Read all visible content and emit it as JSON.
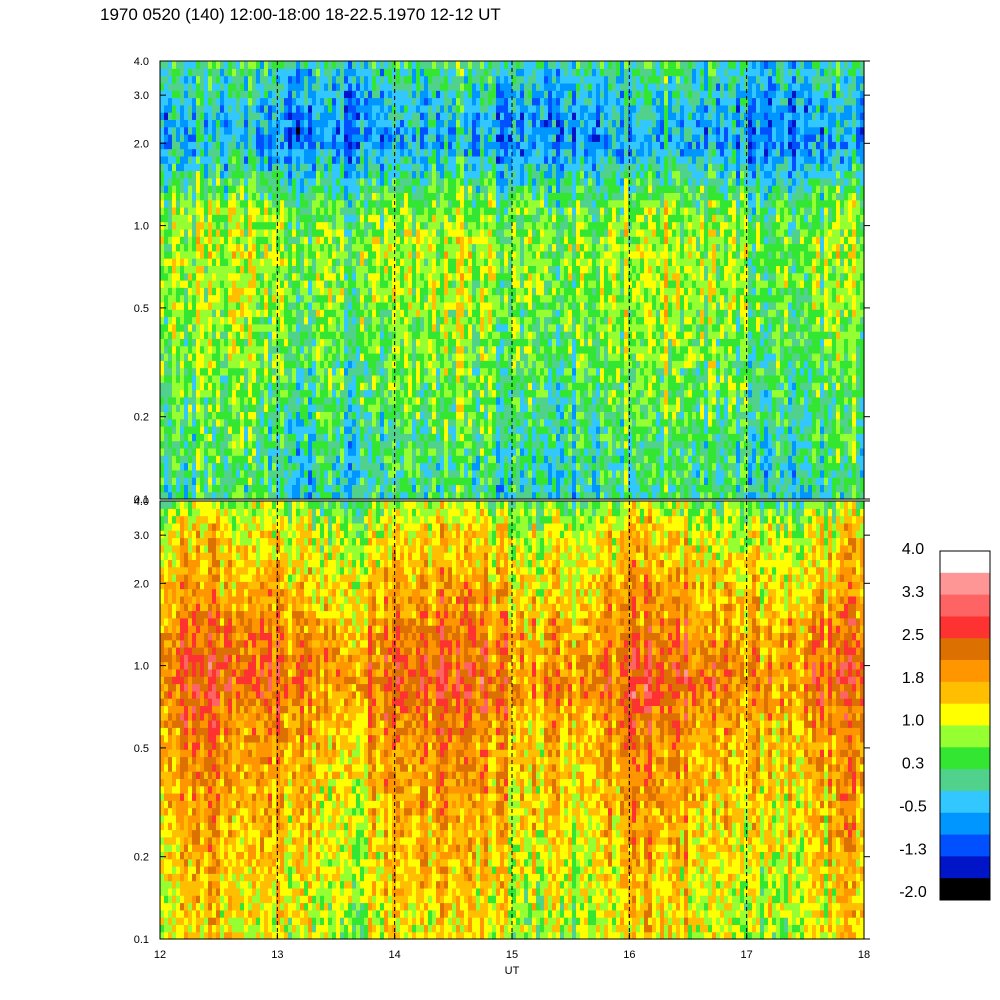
{
  "title": "1970 0520 (140) 12:00-18:00 18-22.5.1970  12-12 UT",
  "chart_data": [
    {
      "type": "heatmap",
      "panel": "upper",
      "x": [
        12,
        18
      ],
      "ylim": [
        0.1,
        4.0
      ],
      "y_scale": "log",
      "y_ticks": [
        "4.0",
        "3.0",
        "2.0",
        "1.0",
        "0.5",
        "0.2",
        "0.1"
      ],
      "y_tick_values": [
        4.0,
        3.0,
        2.0,
        1.0,
        0.5,
        0.2,
        0.1
      ],
      "x_markers": [
        13,
        14,
        15,
        16,
        17
      ],
      "profile": [
        {
          "y": 0.1,
          "value": 0.0
        },
        {
          "y": 0.25,
          "value": 0.4
        },
        {
          "y": 0.5,
          "value": 0.7
        },
        {
          "y": 0.8,
          "value": 0.85
        },
        {
          "y": 1.2,
          "value": 0.5
        },
        {
          "y": 2.0,
          "value": -0.6
        },
        {
          "y": 3.0,
          "value": -0.3
        },
        {
          "y": 4.0,
          "value": 0.1
        }
      ]
    },
    {
      "type": "heatmap",
      "panel": "lower",
      "x": [
        12,
        18
      ],
      "ylim": [
        0.1,
        4.0
      ],
      "y_scale": "log",
      "y_ticks": [
        "4.0",
        "3.0",
        "2.0",
        "1.0",
        "0.5",
        "0.2",
        "0.1"
      ],
      "y_tick_values": [
        4.0,
        3.0,
        2.0,
        1.0,
        0.5,
        0.2,
        0.1
      ],
      "x_ticks": [
        "12",
        "13",
        "14",
        "15",
        "16",
        "17",
        "18"
      ],
      "x_tick_values": [
        12,
        13,
        14,
        15,
        16,
        17,
        18
      ],
      "x_markers": [
        13,
        14,
        15,
        16,
        17
      ],
      "xlabel": "UT",
      "profile": [
        {
          "y": 0.1,
          "value": 1.1
        },
        {
          "y": 0.3,
          "value": 1.6
        },
        {
          "y": 0.6,
          "value": 1.9
        },
        {
          "y": 0.85,
          "value": 2.3
        },
        {
          "y": 1.3,
          "value": 2.0
        },
        {
          "y": 2.2,
          "value": 1.5
        },
        {
          "y": 3.2,
          "value": 1.2
        },
        {
          "y": 4.0,
          "value": 0.6
        }
      ]
    }
  ],
  "colorbar": {
    "labels": [
      "4.0",
      "3.3",
      "2.5",
      "1.8",
      "1.0",
      "0.3",
      "-0.5",
      "-1.3",
      "-2.0"
    ],
    "colors_top_to_bottom": [
      "#ffffff",
      "#ff9696",
      "#ff6464",
      "#ff3232",
      "#dc7000",
      "#ff9600",
      "#ffbe00",
      "#ffff00",
      "#96ff32",
      "#32e632",
      "#50d28c",
      "#32c8ff",
      "#0096ff",
      "#0050ff",
      "#0014c8",
      "#000000"
    ]
  }
}
